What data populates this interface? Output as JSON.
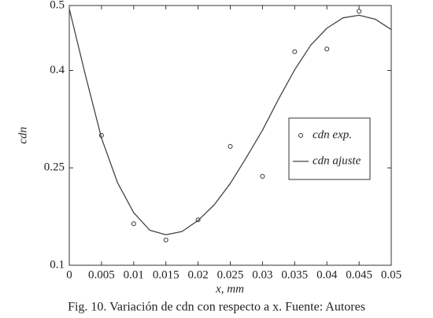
{
  "chart_data": {
    "type": "line",
    "caption": "Fig. 10. Variación de cdn con respecto a x. Fuente: Autores",
    "x_label": "x, mm",
    "y_label": "cdn",
    "xlim": [
      0,
      0.05
    ],
    "ylim": [
      0.1,
      0.5
    ],
    "xticks": [
      0,
      0.005,
      0.01,
      0.015,
      0.02,
      0.025,
      0.03,
      0.035,
      0.04,
      0.045,
      0.05
    ],
    "yticks": [
      0.1,
      0.25,
      0.4,
      0.5
    ],
    "legend": "right",
    "series": [
      {
        "name": "cdn exp.",
        "type": "scatter",
        "color": "#333333",
        "x": [
          0.005,
          0.01,
          0.015,
          0.02,
          0.025,
          0.03,
          0.035,
          0.04,
          0.045
        ],
        "values": [
          0.3,
          0.164,
          0.139,
          0.17,
          0.283,
          0.237,
          0.429,
          0.433,
          0.491
        ]
      },
      {
        "name": "cdn ajuste",
        "type": "line",
        "color": "#444444",
        "x": [
          0,
          0.0025,
          0.005,
          0.0075,
          0.01,
          0.0125,
          0.015,
          0.0175,
          0.02,
          0.0225,
          0.025,
          0.0275,
          0.03,
          0.0325,
          0.035,
          0.0375,
          0.04,
          0.0425,
          0.045,
          0.0475,
          0.05
        ],
        "values": [
          0.495,
          0.393,
          0.296,
          0.227,
          0.181,
          0.154,
          0.147,
          0.152,
          0.169,
          0.193,
          0.226,
          0.266,
          0.308,
          0.356,
          0.401,
          0.439,
          0.465,
          0.481,
          0.485,
          0.479,
          0.463
        ]
      }
    ]
  }
}
